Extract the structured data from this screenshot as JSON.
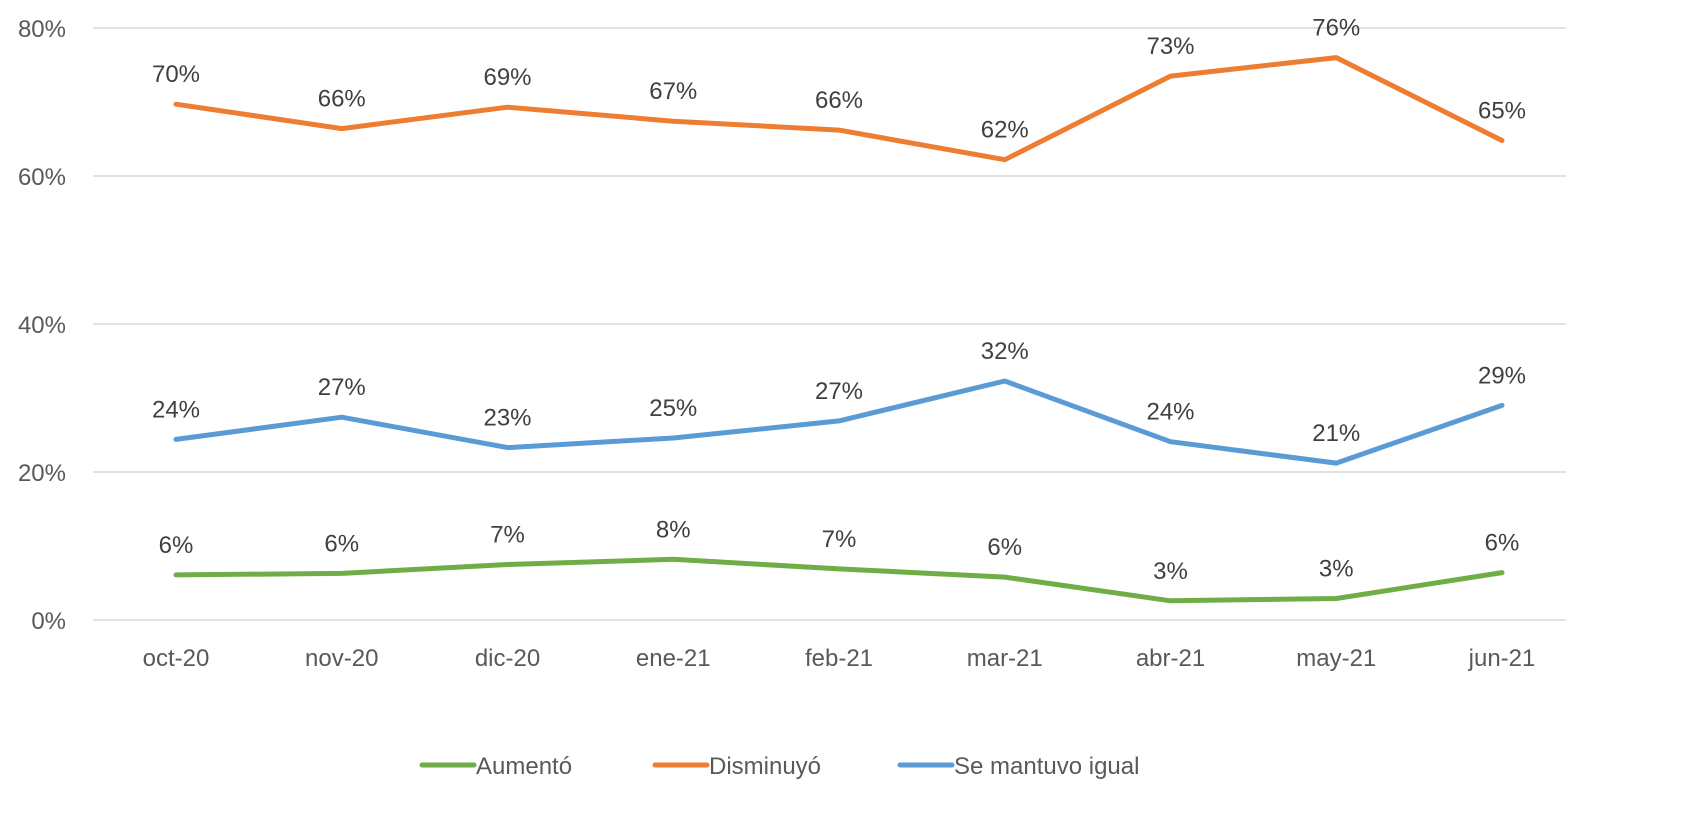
{
  "chart_data": {
    "type": "line",
    "title": "",
    "xlabel": "",
    "ylabel": "",
    "categories": [
      "oct-20",
      "nov-20",
      "dic-20",
      "ene-21",
      "feb-21",
      "mar-21",
      "abr-21",
      "may-21",
      "jun-21"
    ],
    "y_ticks": [
      "0%",
      "20%",
      "40%",
      "60%",
      "80%"
    ],
    "ylim": [
      0,
      80
    ],
    "grid": true,
    "legend_position": "bottom",
    "series": [
      {
        "name": "Aumentó",
        "color": "#70AD47",
        "values": [
          6.1,
          6.3,
          7.5,
          8.2,
          6.9,
          5.8,
          2.6,
          2.9,
          6.4
        ],
        "labels": [
          "6%",
          "6%",
          "7%",
          "8%",
          "7%",
          "6%",
          "3%",
          "3%",
          "6%"
        ]
      },
      {
        "name": "Disminuyó",
        "color": "#ED7D31",
        "values": [
          69.7,
          66.4,
          69.3,
          67.4,
          66.2,
          62.2,
          73.5,
          76.0,
          64.8
        ],
        "labels": [
          "70%",
          "66%",
          "69%",
          "67%",
          "66%",
          "62%",
          "73%",
          "76%",
          "65%"
        ]
      },
      {
        "name": "Se mantuvo igual",
        "color": "#5B9BD5",
        "values": [
          24.4,
          27.4,
          23.3,
          24.6,
          26.9,
          32.3,
          24.1,
          21.2,
          29.0
        ],
        "labels": [
          "24%",
          "27%",
          "23%",
          "25%",
          "27%",
          "32%",
          "24%",
          "21%",
          "29%"
        ]
      }
    ]
  }
}
